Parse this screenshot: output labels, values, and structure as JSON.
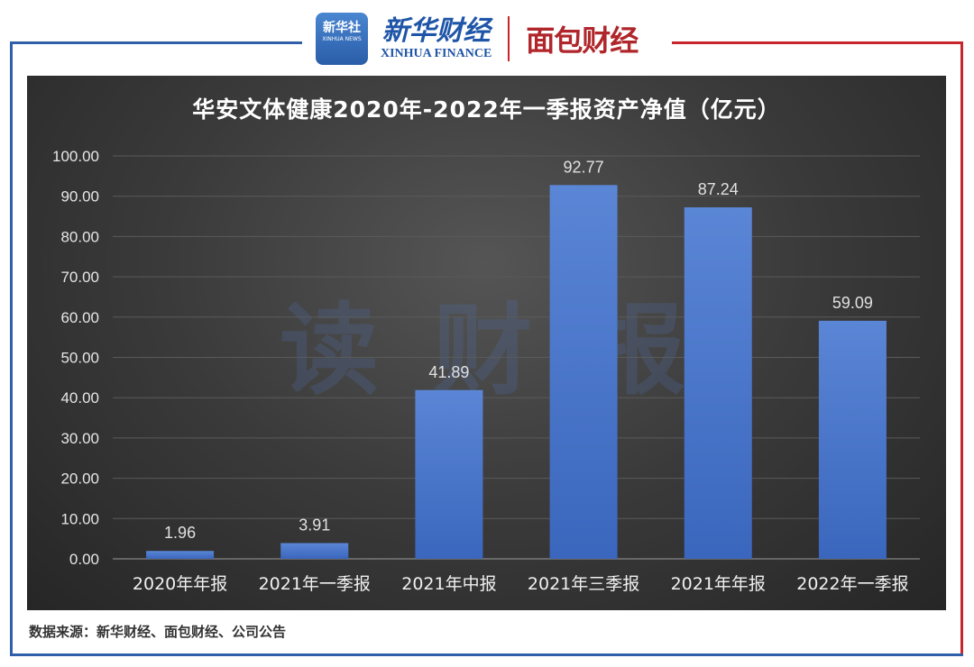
{
  "header": {
    "logo_xinhua_news_cn": "新华社",
    "logo_xinhua_news_en": "XINHUA NEWS",
    "logo_xinhua_finance_cn": "新华财经",
    "logo_xinhua_finance_en": "XINHUA FINANCE",
    "logo_mianbao": "面包财经"
  },
  "watermark": "读财报",
  "source": "数据来源：新华财经、面包财经、公司公告",
  "colors": {
    "bar": "#4a76c9",
    "frame_blue": "#2f5fa8",
    "frame_red": "#c8262d"
  },
  "chart_data": {
    "type": "bar",
    "title": "华安文体健康2020年-2022年一季报资产净值（亿元）",
    "categories": [
      "2020年年报",
      "2021年一季报",
      "2021年中报",
      "2021年三季报",
      "2021年年报",
      "2022年一季报"
    ],
    "values": [
      1.96,
      3.91,
      41.89,
      92.77,
      87.24,
      59.09
    ],
    "value_labels": [
      "1.96",
      "3.91",
      "41.89",
      "92.77",
      "87.24",
      "59.09"
    ],
    "y_ticks": [
      "0.00",
      "10.00",
      "20.00",
      "30.00",
      "40.00",
      "50.00",
      "60.00",
      "70.00",
      "80.00",
      "90.00",
      "100.00"
    ],
    "ylim": [
      0,
      100
    ],
    "grid": true,
    "xlabel": "",
    "ylabel": ""
  }
}
